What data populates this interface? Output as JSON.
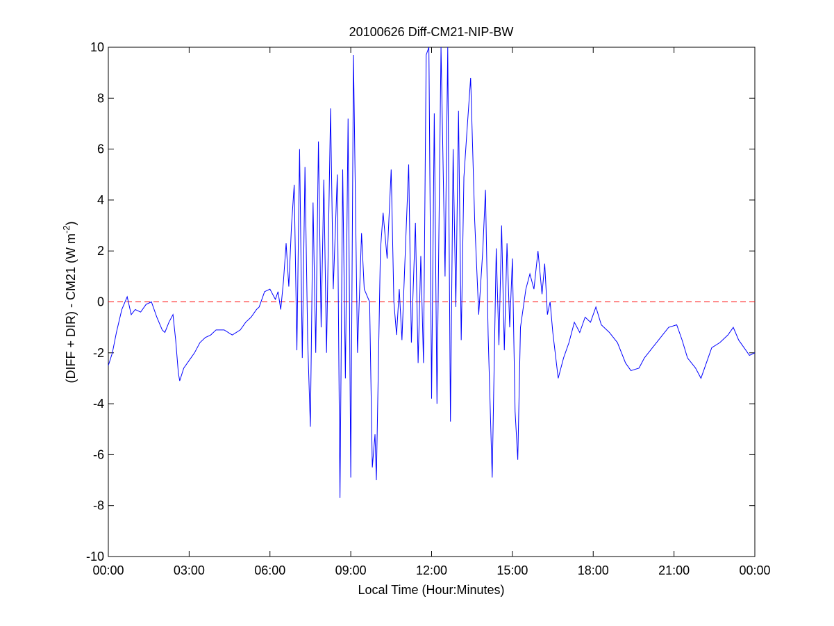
{
  "chart_data": {
    "type": "line",
    "title": "20100626 Diff-CM21-NIP-BW",
    "xlabel": "Local Time (Hour:Minutes)",
    "ylabel": {
      "text": "(DIFF + DIR) - CM21 (W m",
      "sup": "-2",
      "end": ")"
    },
    "xlim": [
      0,
      24
    ],
    "ylim": [
      -10,
      10
    ],
    "xticks": [
      {
        "value": 0,
        "label": "00:00"
      },
      {
        "value": 3,
        "label": "03:00"
      },
      {
        "value": 6,
        "label": "06:00"
      },
      {
        "value": 9,
        "label": "09:00"
      },
      {
        "value": 12,
        "label": "12:00"
      },
      {
        "value": 15,
        "label": "15:00"
      },
      {
        "value": 18,
        "label": "18:00"
      },
      {
        "value": 21,
        "label": "21:00"
      },
      {
        "value": 24,
        "label": "00:00"
      }
    ],
    "yticks": [
      -10,
      -8,
      -6,
      -4,
      -2,
      0,
      2,
      4,
      6,
      8,
      10
    ],
    "hline": {
      "value": 0,
      "color": "#ff0000"
    },
    "series": [
      {
        "color": "#0000ff",
        "x": [
          0.0,
          0.15,
          0.3,
          0.5,
          0.7,
          0.85,
          1.0,
          1.2,
          1.4,
          1.6,
          1.8,
          2.0,
          2.1,
          2.25,
          2.4,
          2.5,
          2.6,
          2.65,
          2.8,
          3.0,
          3.2,
          3.4,
          3.6,
          3.8,
          4.0,
          4.3,
          4.6,
          4.9,
          5.1,
          5.3,
          5.5,
          5.6,
          5.7,
          5.8,
          6.0,
          6.2,
          6.3,
          6.4,
          6.5,
          6.6,
          6.7,
          6.8,
          6.9,
          7.0,
          7.1,
          7.2,
          7.3,
          7.4,
          7.5,
          7.6,
          7.7,
          7.8,
          7.9,
          8.0,
          8.1,
          8.25,
          8.35,
          8.5,
          8.6,
          8.7,
          8.8,
          8.9,
          9.0,
          9.1,
          9.25,
          9.4,
          9.5,
          9.7,
          9.8,
          9.9,
          9.95,
          10.1,
          10.2,
          10.35,
          10.5,
          10.6,
          10.7,
          10.8,
          10.9,
          11.0,
          11.15,
          11.25,
          11.4,
          11.5,
          11.6,
          11.7,
          11.8,
          11.9,
          12.0,
          12.1,
          12.2,
          12.35,
          12.5,
          12.6,
          12.7,
          12.8,
          12.9,
          13.0,
          13.1,
          13.2,
          13.3,
          13.45,
          13.6,
          13.75,
          13.9,
          14.0,
          14.1,
          14.25,
          14.4,
          14.5,
          14.6,
          14.7,
          14.8,
          14.9,
          15.0,
          15.1,
          15.2,
          15.3,
          15.5,
          15.65,
          15.8,
          15.95,
          16.1,
          16.2,
          16.3,
          16.4,
          16.5,
          16.7,
          16.9,
          17.1,
          17.3,
          17.5,
          17.7,
          17.9,
          18.1,
          18.3,
          18.6,
          18.9,
          19.2,
          19.4,
          19.7,
          19.9,
          20.2,
          20.5,
          20.8,
          21.1,
          21.3,
          21.5,
          21.8,
          22.0,
          22.2,
          22.4,
          22.7,
          23.0,
          23.2,
          23.4,
          23.6,
          23.8,
          24.0
        ],
        "values": [
          -2.5,
          -2.0,
          -1.2,
          -0.3,
          0.2,
          -0.5,
          -0.3,
          -0.4,
          -0.1,
          0.0,
          -0.6,
          -1.1,
          -1.2,
          -0.8,
          -0.5,
          -1.5,
          -2.8,
          -3.1,
          -2.6,
          -2.3,
          -2.0,
          -1.6,
          -1.4,
          -1.3,
          -1.1,
          -1.1,
          -1.3,
          -1.1,
          -0.8,
          -0.6,
          -0.3,
          -0.2,
          0.1,
          0.4,
          0.5,
          0.1,
          0.4,
          -0.3,
          0.8,
          2.3,
          0.6,
          3.0,
          4.6,
          -1.9,
          6.0,
          -2.2,
          5.3,
          -1.5,
          -4.9,
          3.9,
          -2.0,
          6.3,
          -1.0,
          4.8,
          -2.0,
          7.6,
          0.5,
          5.0,
          -7.7,
          5.2,
          -3.0,
          7.2,
          -6.9,
          9.7,
          -2.0,
          2.7,
          0.5,
          0.0,
          -6.5,
          -5.2,
          -7.0,
          2.0,
          3.5,
          1.7,
          5.2,
          0.0,
          -1.3,
          0.5,
          -1.5,
          1.3,
          5.4,
          -1.6,
          3.1,
          -2.4,
          1.8,
          -2.4,
          9.7,
          10,
          -3.8,
          7.4,
          -4.0,
          10,
          1.0,
          10,
          -4.7,
          6.0,
          -0.2,
          7.5,
          -1.5,
          4.9,
          6.5,
          8.8,
          3.2,
          -0.5,
          2.0,
          4.4,
          -1.3,
          -6.9,
          2.1,
          -1.7,
          3.0,
          -1.9,
          2.3,
          -1.0,
          1.7,
          -4.3,
          -6.2,
          -1.0,
          0.5,
          1.1,
          0.5,
          2.0,
          0.3,
          1.5,
          -0.5,
          0.0,
          -1.2,
          -3.0,
          -2.2,
          -1.6,
          -0.8,
          -1.2,
          -0.6,
          -0.8,
          -0.2,
          -0.9,
          -1.2,
          -1.6,
          -2.4,
          -2.7,
          -2.6,
          -2.2,
          -1.8,
          -1.4,
          -1.0,
          -0.9,
          -1.5,
          -2.2,
          -2.6,
          -3.0,
          -2.4,
          -1.8,
          -1.6,
          -1.3,
          -1.0,
          -1.5,
          -1.8,
          -2.1,
          -2.0
        ]
      }
    ]
  }
}
